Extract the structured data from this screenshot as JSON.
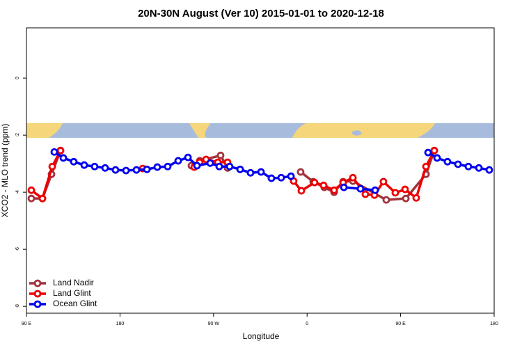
{
  "chart_data": {
    "type": "line",
    "title": "20N-30N August (Ver 10)   2015-01-01 to 2020-12-18",
    "x_label": "Longitude",
    "y_label": "XCO2 - MLO trend (ppm)",
    "xlim": [
      90,
      540
    ],
    "ylim": [
      -8.24,
      1.76
    ],
    "xticks": [
      {
        "value": 90,
        "label": "90 E"
      },
      {
        "value": 180,
        "label": "180"
      },
      {
        "value": 270,
        "label": "90 W"
      },
      {
        "value": 360,
        "label": "0"
      },
      {
        "value": 450,
        "label": "90 E"
      },
      {
        "value": 540,
        "label": "180"
      }
    ],
    "yticks": [
      -8,
      -6,
      -4,
      -2,
      0
    ],
    "legend": "bottom-left",
    "series": [
      {
        "name": "Land Nadir",
        "color": "#a3323c",
        "x": [
          94.7,
          105.4,
          114.1,
          122.8,
          null,
          248.7,
          256.7,
          276.8,
          283.5,
          null,
          353.8,
          365.9,
          376.6,
          386,
          394.7,
          404.1,
          436.2,
          455,
          474.4,
          482.4
        ],
        "values": [
          -4.22,
          -4.22,
          -3.37,
          -2.54,
          null,
          -3.07,
          -2.9,
          -2.71,
          -3.15,
          null,
          -3.29,
          -3.63,
          -3.83,
          -4.0,
          -3.63,
          -3.61,
          -4.27,
          -4.22,
          -3.37,
          -2.54
        ]
      },
      {
        "name": "Land Glint",
        "color": "#ee0000",
        "x": [
          94.7,
          105.4,
          114.8,
          122.8,
          null,
          201.8,
          null,
          251.4,
          256.7,
          262.8,
          274.2,
          283.5,
          null,
          347.1,
          354.5,
          367.2,
          375.9,
          386,
          394.7,
          404.1,
          416.1,
          424.8,
          433.5,
          444.9,
          454.3,
          465,
          474.4,
          482.4
        ],
        "values": [
          -3.93,
          -4.22,
          -3.1,
          -2.54,
          null,
          -3.17,
          null,
          -3.12,
          -2.95,
          -2.85,
          -2.95,
          -2.95,
          null,
          -3.61,
          -3.95,
          -3.66,
          -3.76,
          -3.93,
          -3.66,
          -3.49,
          -4.07,
          -4.1,
          -3.63,
          -4.02,
          -3.9,
          -4.2,
          -3.1,
          -2.54
        ]
      },
      {
        "name": "Ocean Glint",
        "color": "#0000ee",
        "x": [
          116.8,
          125.5,
          135.5,
          145.6,
          155.6,
          165.7,
          175.7,
          185.8,
          195.8,
          205.9,
          215.9,
          225.9,
          236,
          245.4,
          254.1,
          266.8,
          275.5,
          285.5,
          295.6,
          305.6,
          315.7,
          325.7,
          335.1,
          344.5,
          null,
          395.4,
          411.4,
          425.5,
          null,
          476.4,
          485.1,
          495.1,
          505.2,
          515.2,
          525.3,
          535.3
        ],
        "values": [
          -2.59,
          -2.8,
          -2.93,
          -3.05,
          -3.1,
          -3.15,
          -3.22,
          -3.24,
          -3.22,
          -3.2,
          -3.12,
          -3.1,
          -2.9,
          -2.78,
          -3.07,
          -2.98,
          -3.1,
          -3.1,
          -3.2,
          -3.32,
          -3.29,
          -3.51,
          -3.49,
          -3.44,
          null,
          -3.83,
          -3.88,
          -3.93,
          null,
          -2.61,
          -2.8,
          -2.93,
          -3.02,
          -3.1,
          -3.15,
          -3.22
        ]
      }
    ]
  }
}
